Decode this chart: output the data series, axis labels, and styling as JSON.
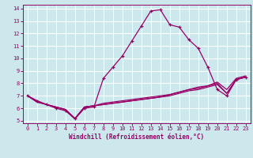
{
  "xlabel": "Windchill (Refroidissement éolien,°C)",
  "bg_color": "#cce8ed",
  "grid_color": "#ffffff",
  "line_color": "#990066",
  "xlim": [
    -0.5,
    23.5
  ],
  "ylim": [
    4.8,
    14.3
  ],
  "yticks": [
    5,
    6,
    7,
    8,
    9,
    10,
    11,
    12,
    13,
    14
  ],
  "xticks": [
    0,
    1,
    2,
    3,
    4,
    5,
    6,
    7,
    8,
    9,
    10,
    11,
    12,
    13,
    14,
    15,
    16,
    17,
    18,
    19,
    20,
    21,
    22,
    23
  ],
  "line1_x": [
    0,
    1,
    2,
    3,
    4,
    5,
    6,
    7,
    8,
    9,
    10,
    11,
    12,
    13,
    14,
    15,
    16,
    17,
    18,
    19,
    20,
    21,
    22,
    23
  ],
  "line1_y": [
    7.0,
    6.6,
    6.3,
    6.0,
    5.8,
    5.15,
    6.0,
    6.1,
    8.4,
    9.3,
    10.2,
    11.4,
    12.6,
    13.8,
    13.9,
    12.7,
    12.5,
    11.5,
    10.8,
    9.3,
    7.5,
    7.0,
    8.3,
    8.5
  ],
  "line2_x": [
    0,
    1,
    2,
    3,
    4,
    5,
    6,
    7,
    8,
    9,
    10,
    11,
    12,
    13,
    14,
    15,
    16,
    17,
    18,
    19,
    20,
    21,
    22,
    23
  ],
  "line2_y": [
    7.0,
    6.6,
    6.3,
    6.1,
    5.9,
    5.2,
    6.1,
    6.2,
    6.4,
    6.5,
    6.6,
    6.7,
    6.8,
    6.9,
    7.0,
    7.1,
    7.3,
    7.5,
    7.7,
    7.8,
    8.0,
    7.2,
    8.3,
    8.5
  ],
  "line3_x": [
    0,
    1,
    2,
    3,
    4,
    5,
    6,
    7,
    8,
    9,
    10,
    11,
    12,
    13,
    14,
    15,
    16,
    17,
    18,
    19,
    20,
    21,
    22,
    23
  ],
  "line3_y": [
    7.0,
    6.5,
    6.3,
    6.1,
    5.9,
    5.15,
    6.1,
    6.2,
    6.3,
    6.4,
    6.5,
    6.6,
    6.7,
    6.8,
    6.9,
    7.1,
    7.3,
    7.5,
    7.6,
    7.8,
    8.1,
    7.5,
    8.4,
    8.6
  ],
  "line4_x": [
    0,
    1,
    2,
    3,
    4,
    5,
    6,
    7,
    8,
    9,
    10,
    11,
    12,
    13,
    14,
    15,
    16,
    17,
    18,
    19,
    20,
    21,
    22,
    23
  ],
  "line4_y": [
    7.0,
    6.5,
    6.3,
    6.1,
    5.9,
    5.15,
    6.1,
    6.2,
    6.3,
    6.4,
    6.5,
    6.6,
    6.7,
    6.8,
    6.9,
    7.0,
    7.2,
    7.4,
    7.5,
    7.7,
    7.9,
    7.2,
    8.3,
    8.5
  ]
}
